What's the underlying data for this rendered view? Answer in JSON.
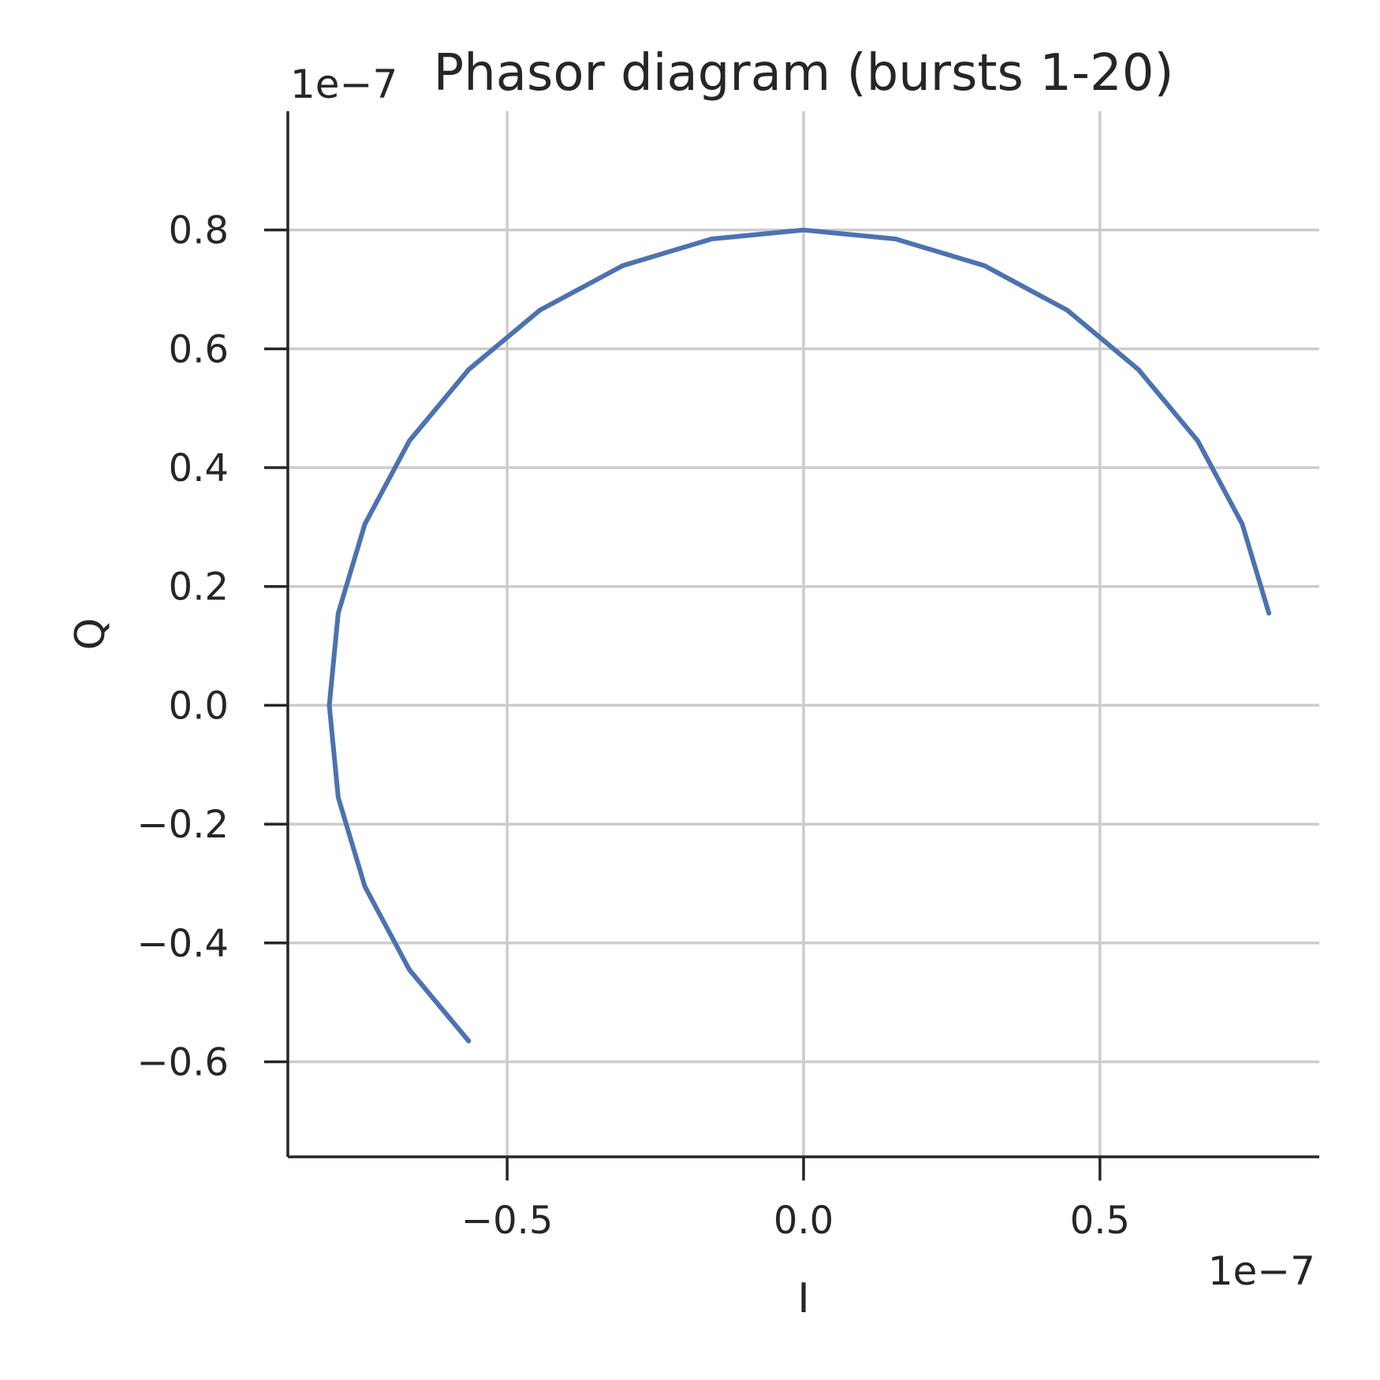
{
  "chart_data": {
    "type": "line",
    "title": "Phasor diagram (bursts 1-20)",
    "xlabel": "I",
    "ylabel": "Q",
    "x_offset_label": "1e−7",
    "y_offset_label": "1e−7",
    "xlim": [
      -0.87,
      0.87
    ],
    "ylim": [
      -0.76,
      1.0
    ],
    "xticks": [
      -0.5,
      0.0,
      0.5
    ],
    "xtick_labels": [
      "−0.5",
      "0.0",
      "0.5"
    ],
    "yticks": [
      -0.6,
      -0.4,
      -0.2,
      0.0,
      0.2,
      0.4,
      0.6,
      0.8
    ],
    "ytick_labels": [
      "−0.6",
      "−0.4",
      "−0.2",
      "0.0",
      "0.2",
      "0.4",
      "0.6",
      "0.8"
    ],
    "grid": true,
    "color": "#4c72b0",
    "series": [
      {
        "x": [
          0.785,
          0.74,
          0.665,
          0.565,
          0.445,
          0.305,
          0.155,
          0.0,
          -0.155,
          -0.305,
          -0.445,
          -0.565,
          -0.665,
          -0.74,
          -0.785,
          -0.8,
          -0.785,
          -0.74,
          -0.665,
          -0.565
        ],
        "y": [
          0.155,
          0.305,
          0.445,
          0.565,
          0.665,
          0.74,
          0.785,
          0.8,
          0.785,
          0.74,
          0.665,
          0.565,
          0.445,
          0.305,
          0.155,
          0.0,
          -0.155,
          -0.305,
          -0.445,
          -0.565
        ]
      }
    ]
  }
}
